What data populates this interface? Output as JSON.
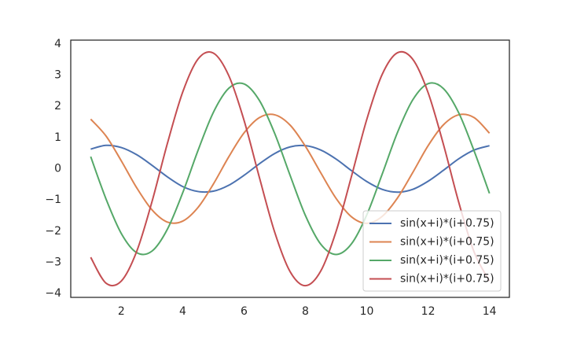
{
  "chart_data": {
    "type": "line",
    "x": [
      1,
      1.5,
      2,
      2.5,
      3,
      3.5,
      4,
      4.5,
      5,
      5.5,
      6,
      6.5,
      7,
      7.5,
      8,
      8.5,
      9,
      9.5,
      10,
      10.5,
      11,
      11.5,
      12,
      12.5,
      13,
      13.5,
      14
    ],
    "series": [
      {
        "name": "sin(x+i)*(i+0.75)",
        "color": "#4c72b0",
        "values": [
          0.63,
          0.75,
          0.68,
          0.45,
          0.11,
          -0.26,
          -0.57,
          -0.73,
          -0.72,
          -0.53,
          -0.21,
          0.16,
          0.49,
          0.7,
          0.74,
          0.6,
          0.31,
          -0.06,
          -0.41,
          -0.66,
          -0.75,
          -0.66,
          -0.4,
          -0.05,
          0.32,
          0.6,
          0.74
        ]
      },
      {
        "name": "sin(x+i)*(i+0.75)",
        "color": "#dd8452",
        "values": [
          1.59,
          1.05,
          0.25,
          -0.61,
          -1.32,
          -1.71,
          -1.68,
          -1.24,
          -0.49,
          0.38,
          1.15,
          1.64,
          1.73,
          1.4,
          0.72,
          -0.13,
          -0.95,
          -1.54,
          -1.75,
          -1.53,
          -0.94,
          -0.12,
          0.74,
          1.41,
          1.73,
          1.64,
          1.14
        ]
      },
      {
        "name": "sin(x+i)*(i+0.75)",
        "color": "#55a868",
        "values": [
          0.39,
          -0.97,
          -2.08,
          -2.69,
          -2.64,
          -1.94,
          -0.77,
          0.59,
          1.81,
          2.58,
          2.72,
          2.19,
          1.13,
          -0.21,
          -1.5,
          -2.42,
          -2.75,
          -2.41,
          -1.48,
          -0.18,
          1.16,
          2.21,
          2.73,
          2.57,
          1.79,
          0.57,
          -0.79
        ]
      },
      {
        "name": "sin(x+i)*(i+0.75)",
        "color": "#c44e52",
        "values": [
          -2.84,
          -3.67,
          -3.6,
          -2.65,
          -1.05,
          0.81,
          2.46,
          3.52,
          3.71,
          2.99,
          1.55,
          -0.28,
          -2.04,
          -3.3,
          -3.75,
          -3.28,
          -2.01,
          -0.25,
          1.58,
          3.02,
          3.72,
          3.51,
          2.44,
          0.78,
          -1.08,
          -2.67,
          -3.6
        ]
      }
    ],
    "xlim": [
      0.35,
      14.65
    ],
    "xticks": [
      2,
      4,
      6,
      8,
      10,
      12,
      14
    ],
    "ylim": [
      -4.125,
      4.125
    ],
    "yticks": [
      {
        "value": -4,
        "label": "−4"
      },
      {
        "value": -3,
        "label": "−3"
      },
      {
        "value": -2,
        "label": "−2"
      },
      {
        "value": -1,
        "label": "−1"
      },
      0,
      1,
      2,
      3,
      4
    ],
    "grid": false,
    "legend": "lower right"
  }
}
